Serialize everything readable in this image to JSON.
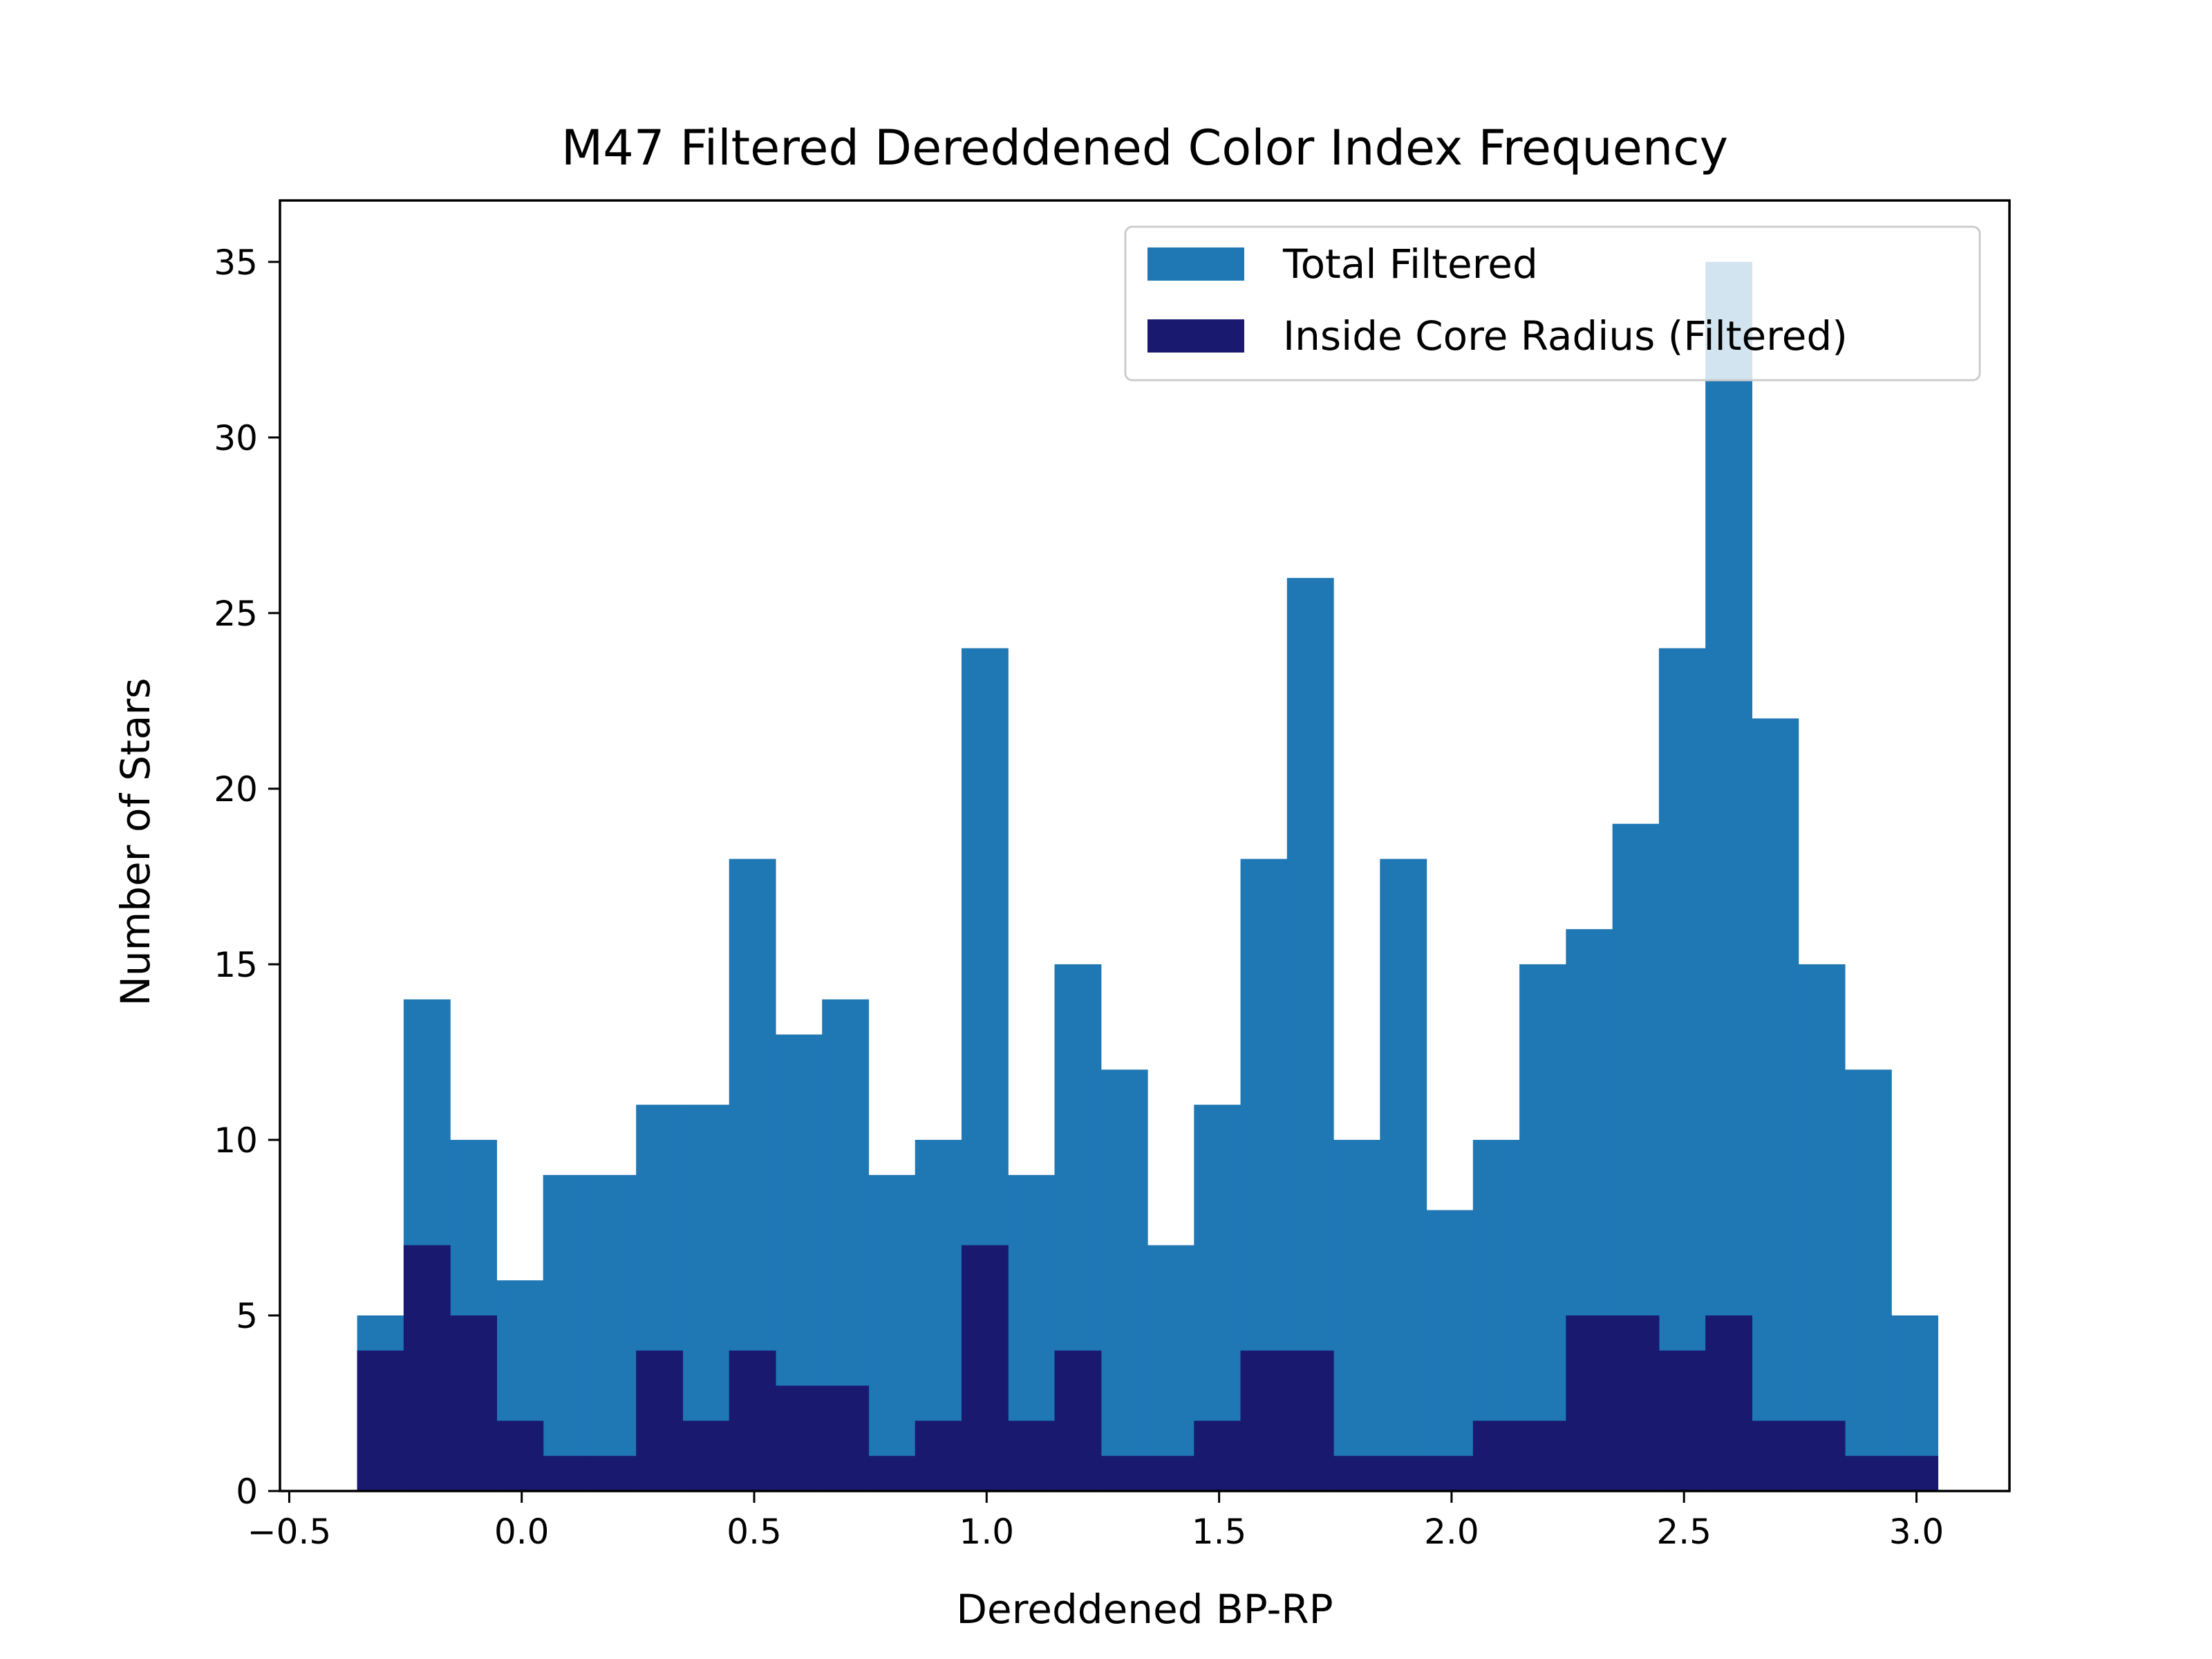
{
  "chart_data": {
    "type": "bar",
    "title": "M47 Filtered Dereddened Color Index Frequency",
    "xlabel": "Dereddened BP-RP",
    "ylabel": "Number of Stars",
    "xlim": [
      -0.52,
      3.2
    ],
    "ylim": [
      0,
      36.75
    ],
    "xticks": [
      -0.5,
      0.0,
      0.5,
      1.0,
      1.5,
      2.0,
      2.5,
      3.0
    ],
    "xtick_labels": [
      "−0.5",
      "0.0",
      "0.5",
      "1.0",
      "1.5",
      "2.0",
      "2.5",
      "3.0"
    ],
    "yticks": [
      0,
      5,
      10,
      15,
      20,
      25,
      30,
      35
    ],
    "ytick_labels": [
      "0",
      "5",
      "10",
      "15",
      "20",
      "25",
      "30",
      "35"
    ],
    "bin_edges": [
      -0.354,
      -0.254,
      -0.154,
      -0.054,
      0.046,
      0.146,
      0.246,
      0.346,
      0.446,
      0.546,
      0.646,
      0.746,
      0.846,
      0.946,
      1.046,
      1.146,
      1.246,
      1.346,
      1.446,
      1.546,
      1.646,
      1.746,
      1.846,
      1.946,
      2.046,
      2.146,
      2.246,
      2.346,
      2.446,
      2.546,
      2.646,
      2.746,
      2.846,
      2.946,
      3.046
    ],
    "series": [
      {
        "name": "Total Filtered",
        "color": "#1f77b4",
        "values": [
          5,
          14,
          10,
          6,
          9,
          9,
          11,
          11,
          18,
          13,
          14,
          9,
          10,
          24,
          9,
          15,
          12,
          7,
          11,
          18,
          26,
          10,
          18,
          8,
          10,
          15,
          16,
          19,
          24,
          35,
          22,
          15,
          12,
          5
        ]
      },
      {
        "name": "Inside Core Radius (Filtered)",
        "color": "#191970",
        "values": [
          4,
          7,
          5,
          2,
          1,
          1,
          4,
          2,
          4,
          3,
          3,
          1,
          2,
          7,
          2,
          4,
          1,
          1,
          2,
          4,
          4,
          1,
          1,
          1,
          2,
          2,
          5,
          5,
          4,
          5,
          2,
          2,
          1,
          1
        ]
      }
    ],
    "legend_position": "top-right",
    "grid": false
  }
}
